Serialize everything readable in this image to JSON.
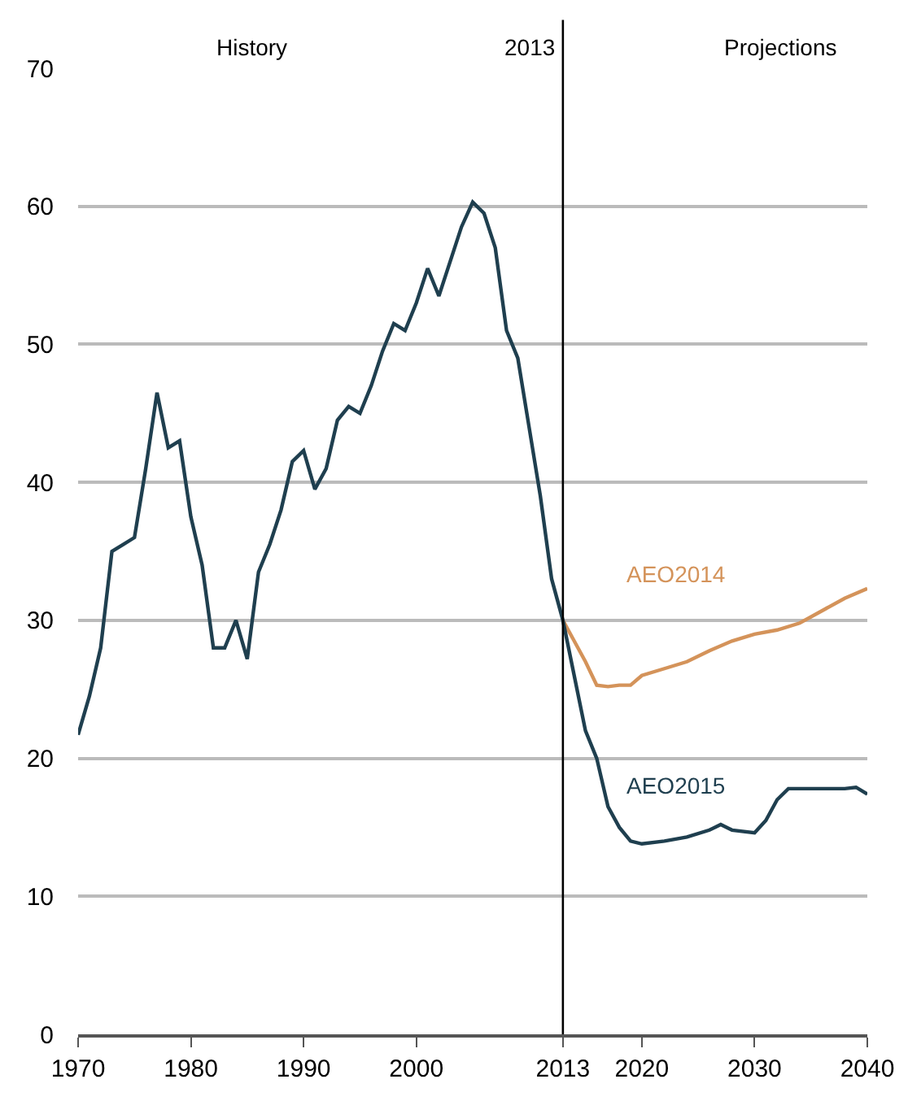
{
  "chart_data": {
    "type": "line",
    "xlim": [
      1970,
      2040
    ],
    "ylim": [
      0,
      70
    ],
    "xticks": [
      1970,
      1980,
      1990,
      2000,
      2013,
      2020,
      2030,
      2040
    ],
    "yticks": [
      0,
      10,
      20,
      30,
      40,
      50,
      60,
      70
    ],
    "grid": "y",
    "legend": false,
    "marker": "none",
    "line_style": "solid",
    "annotations": [
      "History",
      "Projections"
    ],
    "ref_lines": [
      {
        "axis": "x",
        "value": 2013,
        "label": "2013",
        "color": "#000000"
      }
    ],
    "series": [
      {
        "name": "AEO2014",
        "color": "#d4935a",
        "x": [
          2013,
          2014,
          2015,
          2016,
          2017,
          2018,
          2019,
          2020,
          2022,
          2024,
          2026,
          2028,
          2030,
          2032,
          2034,
          2036,
          2038,
          2040
        ],
        "values": [
          30,
          28.5,
          27,
          25.3,
          25.2,
          25.3,
          25.3,
          26,
          26.5,
          27,
          27.8,
          28.5,
          29,
          29.3,
          29.8,
          30.7,
          31.6,
          32.3
        ]
      },
      {
        "name": "AEO2015",
        "color": "#1f3f4f",
        "x": [
          1970,
          1971,
          1972,
          1973,
          1974,
          1975,
          1976,
          1977,
          1978,
          1979,
          1980,
          1981,
          1982,
          1983,
          1984,
          1985,
          1986,
          1987,
          1988,
          1989,
          1990,
          1991,
          1992,
          1993,
          1994,
          1995,
          1996,
          1997,
          1998,
          1999,
          2000,
          2001,
          2002,
          2003,
          2004,
          2005,
          2006,
          2007,
          2008,
          2009,
          2010,
          2011,
          2012,
          2013,
          2014,
          2015,
          2016,
          2017,
          2018,
          2019,
          2020,
          2022,
          2024,
          2026,
          2027,
          2028,
          2030,
          2031,
          2032,
          2033,
          2035,
          2038,
          2039,
          2040
        ],
        "values": [
          21.7,
          24.5,
          28,
          35,
          35.5,
          36,
          41,
          46.5,
          42.5,
          43,
          37.5,
          34,
          28,
          28,
          30,
          27.2,
          33.5,
          35.5,
          38,
          41.5,
          42.3,
          39.5,
          41,
          44.5,
          45.5,
          45,
          47,
          49.5,
          51.5,
          51,
          53,
          55.5,
          53.5,
          56,
          58.5,
          60.3,
          59.5,
          57,
          51,
          49,
          44,
          39,
          33,
          30,
          26,
          22,
          20,
          16.5,
          15,
          14,
          13.8,
          14,
          14.3,
          14.8,
          15.2,
          14.8,
          14.6,
          15.5,
          17,
          17.8,
          17.8,
          17.8,
          17.9,
          17.4
        ]
      }
    ]
  }
}
